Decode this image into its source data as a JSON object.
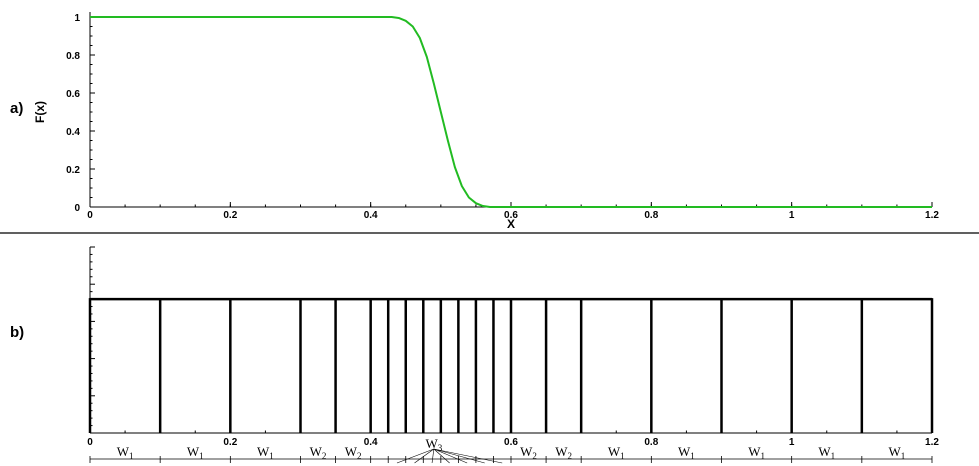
{
  "chart_data": [
    {
      "panel": "a)",
      "type": "line",
      "xlabel": "X",
      "ylabel": "F(x)",
      "xlim": [
        0,
        1.2
      ],
      "ylim": [
        0,
        1
      ],
      "x_ticks": [
        0,
        0.2,
        0.4,
        0.6,
        0.8,
        1,
        1.2
      ],
      "x_tick_labels": [
        "0",
        "0.2",
        "0.4",
        "0.6",
        "0.8",
        "1",
        "1.2"
      ],
      "y_ticks": [
        0,
        0.2,
        0.4,
        0.6,
        0.8,
        1
      ],
      "y_tick_labels": [
        "0",
        "0.2",
        "0.4",
        "0.6",
        "0.8",
        "1"
      ],
      "line_color": "#22bb22",
      "grid": false,
      "series": [
        {
          "x": [
            0,
            0.1,
            0.2,
            0.3,
            0.4,
            0.43,
            0.44,
            0.45,
            0.46,
            0.47,
            0.48,
            0.49,
            0.5,
            0.51,
            0.52,
            0.53,
            0.54,
            0.55,
            0.56,
            0.57,
            0.6,
            0.8,
            1.0,
            1.2
          ],
          "values": [
            1,
            1,
            1,
            1,
            1,
            1,
            0.995,
            0.98,
            0.95,
            0.89,
            0.79,
            0.65,
            0.5,
            0.35,
            0.21,
            0.11,
            0.05,
            0.02,
            0.005,
            0,
            0,
            0,
            0,
            0
          ]
        }
      ]
    },
    {
      "panel": "b)",
      "type": "bar",
      "xlim": [
        0,
        1.2
      ],
      "x_ticks": [
        0,
        0.2,
        0.4,
        0.6,
        0.8,
        1,
        1.2
      ],
      "x_tick_labels": [
        "0",
        "0.2",
        "0.4",
        "0.6",
        "0.8",
        "1",
        "1.2"
      ],
      "level": 0.72,
      "boundaries": [
        0,
        0.1,
        0.2,
        0.3,
        0.35,
        0.4,
        0.425,
        0.45,
        0.475,
        0.5,
        0.525,
        0.55,
        0.575,
        0.6,
        0.65,
        0.7,
        0.8,
        0.9,
        1.0,
        1.1,
        1.2
      ],
      "width_labels": [
        {
          "text": "W",
          "sub": "1",
          "from": 0,
          "to": 0.1
        },
        {
          "text": "W",
          "sub": "1",
          "from": 0.1,
          "to": 0.2
        },
        {
          "text": "W",
          "sub": "1",
          "from": 0.2,
          "to": 0.3
        },
        {
          "text": "W",
          "sub": "2",
          "from": 0.3,
          "to": 0.35
        },
        {
          "text": "W",
          "sub": "2",
          "from": 0.35,
          "to": 0.4
        },
        {
          "text": "W",
          "sub": "2",
          "from": 0.6,
          "to": 0.65
        },
        {
          "text": "W",
          "sub": "2",
          "from": 0.65,
          "to": 0.7
        },
        {
          "text": "W",
          "sub": "1",
          "from": 0.7,
          "to": 0.8
        },
        {
          "text": "W",
          "sub": "1",
          "from": 0.8,
          "to": 0.9
        },
        {
          "text": "W",
          "sub": "1",
          "from": 0.9,
          "to": 1.0
        },
        {
          "text": "W",
          "sub": "1",
          "from": 1.0,
          "to": 1.1
        },
        {
          "text": "W",
          "sub": "1",
          "from": 1.1,
          "to": 1.2
        }
      ],
      "center_label": {
        "text": "W",
        "sub": "3",
        "at": 0.5,
        "targets": [
          0.4375,
          0.4625,
          0.4875,
          0.5125,
          0.5375,
          0.5625,
          0.5875
        ]
      }
    }
  ]
}
